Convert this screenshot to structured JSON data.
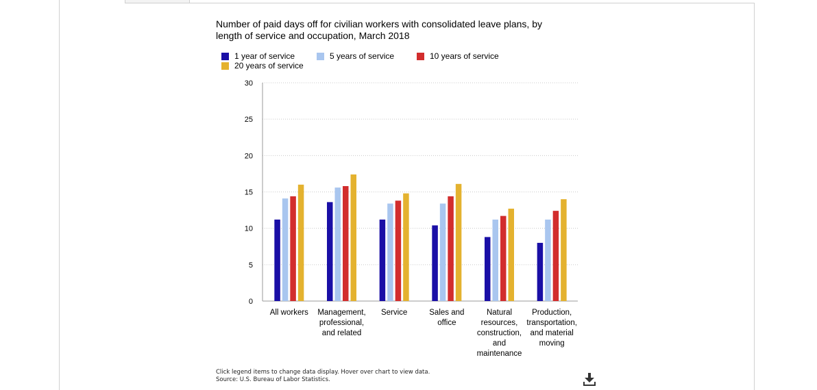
{
  "chart_data": {
    "type": "bar",
    "title": "Number of paid days off for civilian workers with consolidated leave plans, by length of service and occupation, March 2018",
    "categories": [
      [
        "All workers"
      ],
      [
        "Management,",
        "professional,",
        "and related"
      ],
      [
        "Service"
      ],
      [
        "Sales and",
        "office"
      ],
      [
        "Natural",
        "resources,",
        "construction,",
        "and",
        "maintenance"
      ],
      [
        "Production,",
        "transportation,",
        "and material",
        "moving"
      ]
    ],
    "series": [
      {
        "name": "1 year of service",
        "color": "#1a0fa6",
        "values": [
          11.2,
          13.6,
          11.2,
          10.4,
          8.8,
          8.0
        ]
      },
      {
        "name": "5 years of service",
        "color": "#a9c6ef",
        "values": [
          14.1,
          15.6,
          13.4,
          13.4,
          11.2,
          11.2
        ]
      },
      {
        "name": "10 years of service",
        "color": "#d22d2d",
        "values": [
          14.4,
          15.8,
          13.8,
          14.4,
          11.7,
          12.4
        ]
      },
      {
        "name": "20 years of service",
        "color": "#e4b22f",
        "values": [
          16.0,
          17.4,
          14.8,
          16.1,
          12.7,
          14.0
        ]
      }
    ],
    "xlabel": "",
    "ylabel": "",
    "ylim": [
      0,
      30
    ],
    "yticks": [
      0,
      5,
      10,
      15,
      20,
      25,
      30
    ],
    "grid": true,
    "legend_position": "top-left"
  },
  "footnote": {
    "line1": "Click legend items to change data display. Hover over chart to view data.",
    "line2": "Source: U.S. Bureau of Labor Statistics."
  },
  "icons": {
    "download": "download-icon"
  }
}
